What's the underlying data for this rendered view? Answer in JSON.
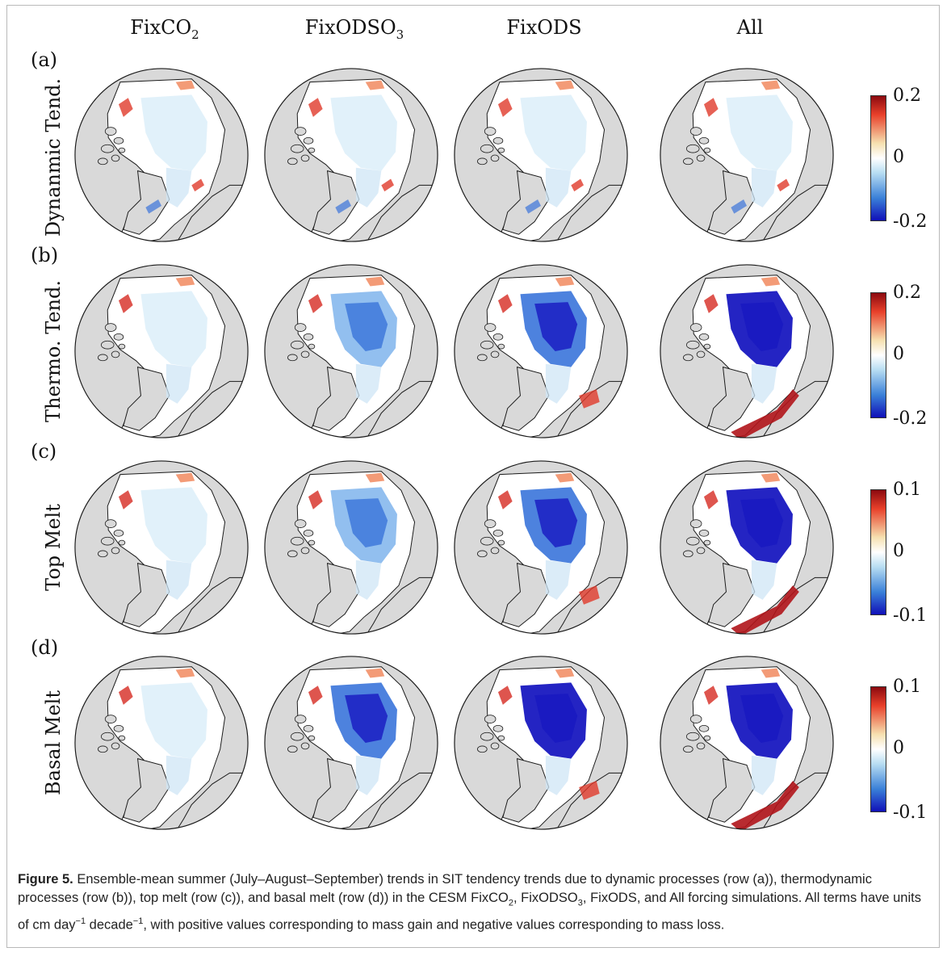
{
  "figure": {
    "columns": [
      {
        "label": "FixCO",
        "sub": "2"
      },
      {
        "label": "FixODSO",
        "sub": "3"
      },
      {
        "label": "FixODS",
        "sub": ""
      },
      {
        "label": "All",
        "sub": ""
      }
    ],
    "rows": [
      {
        "letter": "(a)",
        "label": "Dynanmic Tend.",
        "cbar_max": "0.2",
        "cbar_mid": "0",
        "cbar_min": "-0.2"
      },
      {
        "letter": "(b)",
        "label": "Thermo. Tend.",
        "cbar_max": "0.2",
        "cbar_mid": "0",
        "cbar_min": "-0.2"
      },
      {
        "letter": "(c)",
        "label": "Top Melt",
        "cbar_max": "0.1",
        "cbar_mid": "0",
        "cbar_min": "-0.1"
      },
      {
        "letter": "(d)",
        "label": "Basal Melt",
        "cbar_max": "0.1",
        "cbar_mid": "0",
        "cbar_min": "-0.1"
      }
    ],
    "colors": {
      "land": "#d9d9d9",
      "ocean": "#ffffff",
      "coast": "#1a1a1a",
      "cbar_top": "#8b0a0f",
      "cbar_high": "#e8402a",
      "cbar_warm": "#f6e0b0",
      "cbar_zero": "#ffffff",
      "cbar_cool": "#b6dcf2",
      "cbar_low": "#3a80d8",
      "cbar_bottom": "#1010b8"
    }
  },
  "caption": {
    "label": "Figure 5.",
    "t1": " Ensemble-mean summer (July–August–September) trends in SIT tendency trends due to dynamic processes (row (a)), thermodynamic processes (row (b)), top melt (row (c)), and basal melt (row (d)) in the CESM FixCO",
    "s1": "2",
    "t2": ", FixODSO",
    "s2": "3",
    "t3": ", FixODS, and All forcing simulations. All terms have units of cm day",
    "p1": "−1",
    "t4": " decade",
    "p2": "−1",
    "t5": ", with positive values corresponding to mass gain and negative values corresponding to mass loss."
  }
}
